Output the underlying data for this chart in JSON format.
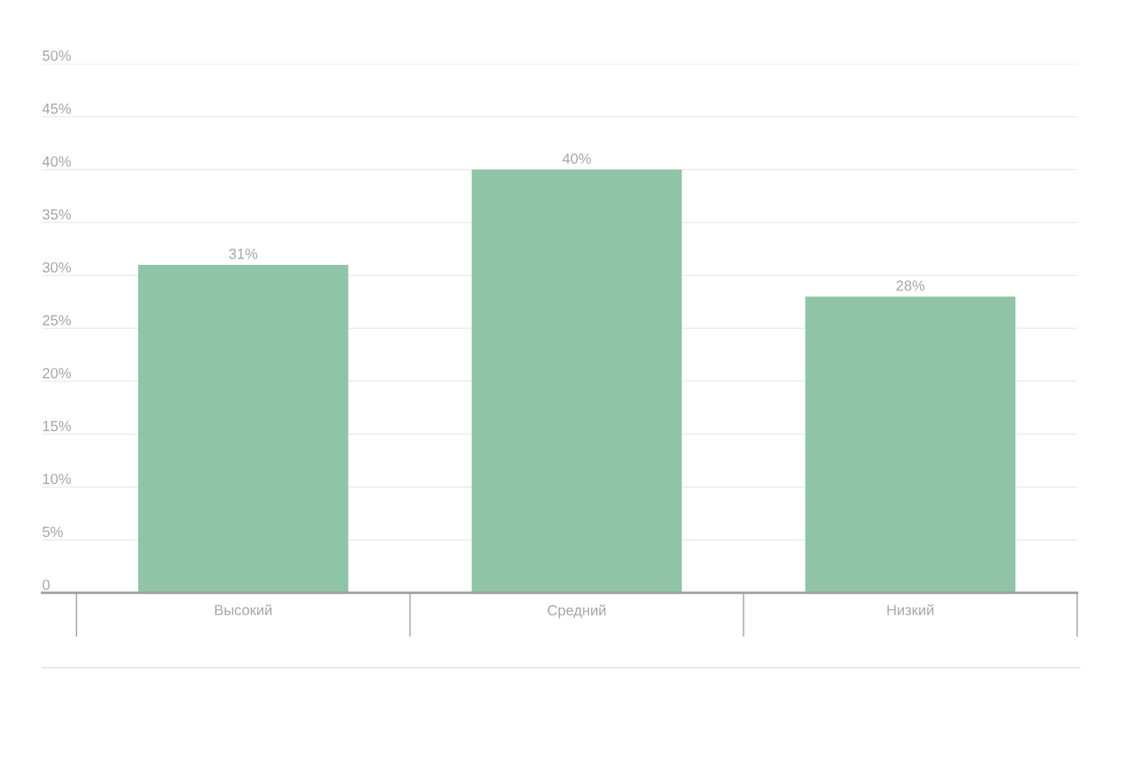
{
  "chart_data": {
    "type": "bar",
    "categories": [
      "Высокий",
      "Средний",
      "Низкий"
    ],
    "values": [
      31,
      40,
      28
    ],
    "color": "#90c4a7",
    "ylim": [
      0,
      50
    ],
    "yticks": [
      {
        "value": 0,
        "label": "0"
      },
      {
        "value": 5,
        "label": "5%"
      },
      {
        "value": 10,
        "label": "10%"
      },
      {
        "value": 15,
        "label": "15%"
      },
      {
        "value": 20,
        "label": "20%"
      },
      {
        "value": 25,
        "label": "25%"
      },
      {
        "value": 30,
        "label": "30%"
      },
      {
        "value": 35,
        "label": "35%"
      },
      {
        "value": 40,
        "label": "40%"
      },
      {
        "value": 45,
        "label": "45%"
      },
      {
        "value": 50,
        "label": "50%"
      }
    ],
    "value_labels": [
      "31%",
      "40%",
      "28%"
    ],
    "grid": "y",
    "legend": false
  }
}
